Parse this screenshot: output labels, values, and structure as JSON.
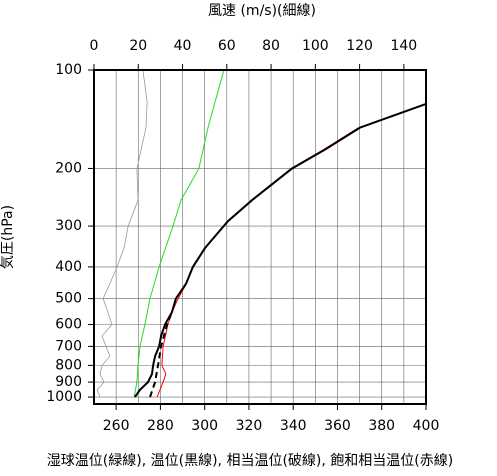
{
  "chart_data": {
    "type": "line",
    "title": "風速 (m/s)(細線)",
    "ylabel": "気圧(hPa)",
    "caption": "湿球温位(緑線), 温位(黒線), 相当温位(破線), 飽和相当温位(赤線)",
    "ylog": true,
    "grid": true,
    "ylim": [
      1050,
      100
    ],
    "yticks": [
      100,
      200,
      300,
      400,
      500,
      600,
      700,
      800,
      900,
      1000
    ],
    "xlim": [
      250,
      400
    ],
    "xticks": [
      260,
      280,
      300,
      320,
      340,
      360,
      380,
      400
    ],
    "x2lim": [
      0,
      150
    ],
    "x2ticks": [
      0,
      20,
      40,
      60,
      80,
      100,
      120,
      140
    ],
    "series": [
      {
        "color": "#999999",
        "axis": "x2",
        "dash": false,
        "y": [
          1000,
          950,
          900,
          850,
          800,
          750,
          700,
          650,
          600,
          550,
          500,
          450,
          400,
          350,
          300,
          250,
          200,
          150,
          125,
          100
        ],
        "x": [
          2.7,
          1.4,
          4.5,
          2.7,
          3.6,
          7.2,
          5.4,
          3.6,
          8.1,
          6.3,
          4.1,
          7.2,
          10.4,
          13.6,
          15.4,
          19.9,
          19.4,
          23.5,
          24,
          22.1
        ]
      },
      {
        "color": "#22dd22",
        "axis": "x",
        "dash": false,
        "y": [
          1000,
          900,
          800,
          700,
          600,
          500,
          400,
          300,
          250,
          200,
          150,
          100
        ],
        "x": [
          268.1,
          269.4,
          269.9,
          270.8,
          273.0,
          275.3,
          279.4,
          285.7,
          289.3,
          297.4,
          301.5,
          308.7
        ]
      },
      {
        "color": "#ff0000",
        "axis": "x",
        "dash": false,
        "y": [
          1000,
          900,
          850,
          800,
          700,
          600,
          550,
          500,
          450,
          400,
          350,
          290,
          250,
          200,
          175,
          150,
          127
        ],
        "x": [
          278.5,
          281.2,
          282.5,
          280.7,
          281.2,
          283.4,
          285.2,
          288.0,
          291.8,
          294.5,
          300.0,
          310.3,
          321.0,
          339.0,
          353.8,
          369.6,
          400.0
        ]
      },
      {
        "color": "#000000",
        "axis": "x",
        "dash": true,
        "y": [
          1000,
          900,
          800,
          700,
          600,
          550
        ],
        "x": [
          275.3,
          277.6,
          278.9,
          280.3,
          283.0,
          285.2
        ]
      },
      {
        "color": "#000000",
        "axis": "x",
        "dash": false,
        "y": [
          1000,
          950,
          900,
          850,
          800,
          750,
          700,
          650,
          600,
          550,
          500,
          450,
          400,
          350,
          290,
          250,
          200,
          175,
          150,
          127
        ],
        "x": [
          268.5,
          270.8,
          274.4,
          276.2,
          276.7,
          277.6,
          279.4,
          280.3,
          282.1,
          285.2,
          287.0,
          291.6,
          294.7,
          300.2,
          310.5,
          321.4,
          339.5,
          354.4,
          370.2,
          400.0
        ]
      }
    ]
  }
}
